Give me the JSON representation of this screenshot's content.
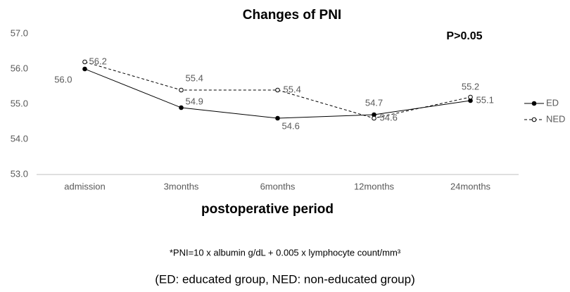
{
  "chart_data": {
    "type": "line",
    "title": "Changes of PNI",
    "annotation": "P>0.05",
    "x_label": "postoperative period",
    "categories": [
      "admission",
      "3months",
      "6months",
      "12months",
      "24months"
    ],
    "series": [
      {
        "name": "ED",
        "color": "#000000",
        "dashed": false,
        "marker": "filled",
        "values": [
          56.0,
          54.9,
          54.6,
          54.7,
          55.1
        ],
        "value_labels": [
          "56.0",
          "54.9",
          "54.6",
          "54.7",
          "55.1"
        ]
      },
      {
        "name": "NED",
        "color": "#000000",
        "dashed": true,
        "marker": "open",
        "values": [
          56.2,
          55.4,
          55.4,
          54.6,
          55.2
        ],
        "value_labels": [
          "56.2",
          "55.4",
          "55.4",
          "54.6",
          "55.2"
        ]
      }
    ],
    "ylim": [
      53,
      57
    ],
    "yticks": [
      {
        "value": 53,
        "label": "53.0"
      },
      {
        "value": 54,
        "label": "54.0"
      },
      {
        "value": 55,
        "label": "55.0"
      },
      {
        "value": 56,
        "label": "56.0"
      },
      {
        "value": 57,
        "label": "57.0"
      }
    ],
    "grid": false,
    "legend": "right",
    "footnotes": [
      "*PNI=10 x albumin g/dL + 0.005 x lymphocyte count/mm³",
      "(ED: educated group, NED: non-educated group)"
    ]
  }
}
